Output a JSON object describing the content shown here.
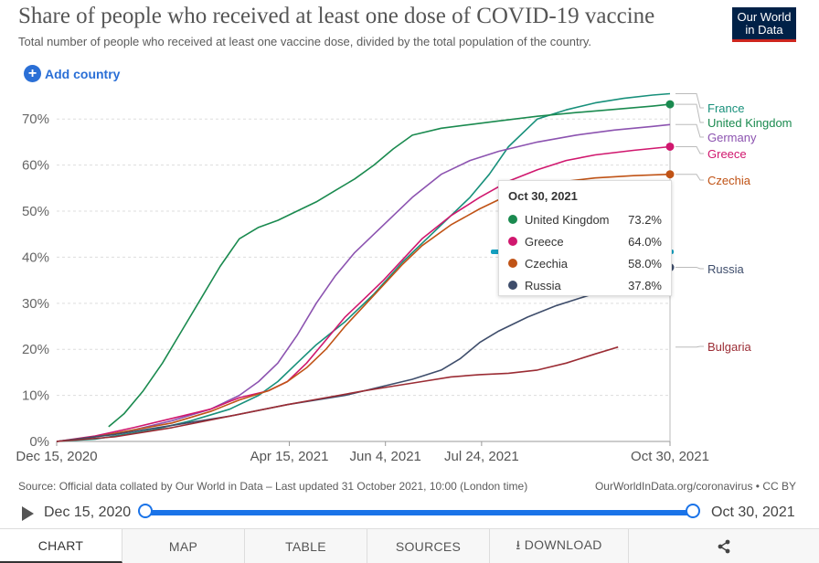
{
  "header": {
    "title": "Share of people who received at least one dose of COVID-19 vaccine",
    "subtitle": "Total number of people who received at least one vaccine dose, divided by the total population of the country.",
    "logo_line1": "Our World",
    "logo_line2": "in Data",
    "add_country_label": "Add country",
    "add_icon_glyph": "+"
  },
  "chart_data": {
    "type": "line",
    "title": "Share of people who received at least one dose of COVID-19 vaccine",
    "ylabel": "",
    "xlabel": "",
    "ylim": [
      0,
      76
    ],
    "y_ticks": [
      0,
      10,
      20,
      30,
      40,
      50,
      60,
      70
    ],
    "y_tick_labels": [
      "0%",
      "10%",
      "20%",
      "30%",
      "40%",
      "50%",
      "60%",
      "70%"
    ],
    "x_range_days": [
      0,
      319
    ],
    "x_ticks": [
      {
        "day": 0,
        "label": "Dec 15, 2020"
      },
      {
        "day": 121,
        "label": "Apr 15, 2021"
      },
      {
        "day": 171,
        "label": "Jun 4, 2021"
      },
      {
        "day": 221,
        "label": "Jul 24, 2021"
      },
      {
        "day": 319,
        "label": "Oct 30, 2021"
      }
    ],
    "series": [
      {
        "name": "France",
        "color": "#18907b",
        "end_value": 75.5,
        "x": [
          0,
          20,
          35,
          50,
          70,
          90,
          105,
          115,
          125,
          135,
          150,
          165,
          180,
          195,
          205,
          215,
          225,
          235,
          250,
          265,
          280,
          295,
          310,
          319
        ],
        "y": [
          0,
          0.5,
          1.5,
          2.5,
          4.5,
          7,
          10,
          13,
          17,
          21,
          26,
          32,
          39,
          45,
          49,
          53,
          58,
          64,
          70,
          72,
          73.5,
          74.5,
          75.2,
          75.5
        ]
      },
      {
        "name": "United Kingdom",
        "color": "#1a8a4f",
        "end_value": 73.2,
        "marker": true,
        "x": [
          27,
          35,
          45,
          55,
          65,
          75,
          85,
          95,
          105,
          115,
          125,
          135,
          145,
          155,
          165,
          175,
          185,
          200,
          215,
          230,
          250,
          270,
          290,
          310,
          319
        ],
        "y": [
          3.2,
          6,
          11,
          17,
          24,
          31,
          38,
          44,
          46.5,
          48,
          50,
          52,
          54.5,
          57,
          60,
          63.5,
          66.5,
          68,
          68.8,
          69.6,
          70.6,
          71.4,
          72.1,
          72.8,
          73.2
        ]
      },
      {
        "name": "Germany",
        "color": "#8c53b0",
        "end_value": 68.8,
        "x": [
          0,
          20,
          40,
          60,
          80,
          95,
          105,
          115,
          125,
          135,
          145,
          155,
          165,
          175,
          185,
          200,
          215,
          230,
          250,
          270,
          290,
          310,
          319
        ],
        "y": [
          0,
          1,
          2.5,
          4.5,
          7,
          10,
          13,
          17,
          23,
          30,
          36,
          41,
          45,
          49,
          53,
          58,
          61,
          63,
          65,
          66.5,
          67.6,
          68.4,
          68.8
        ]
      },
      {
        "name": "Greece",
        "color": "#d0176e",
        "end_value": 64.0,
        "marker": true,
        "x": [
          0,
          20,
          40,
          60,
          80,
          95,
          110,
          120,
          130,
          140,
          150,
          160,
          170,
          180,
          190,
          205,
          220,
          235,
          250,
          265,
          280,
          300,
          319
        ],
        "y": [
          0,
          1.2,
          3,
          5,
          7,
          9.5,
          11,
          13,
          17,
          22,
          27,
          31,
          35,
          39.5,
          44,
          49,
          53,
          56.5,
          59,
          61,
          62.2,
          63.2,
          64
        ]
      },
      {
        "name": "Czechia",
        "color": "#c05316",
        "end_value": 58.0,
        "marker": true,
        "x": [
          0,
          20,
          40,
          60,
          80,
          95,
          110,
          120,
          130,
          140,
          150,
          160,
          170,
          180,
          190,
          205,
          220,
          235,
          250,
          265,
          280,
          300,
          319
        ],
        "y": [
          0,
          1,
          2.5,
          4,
          6.5,
          9,
          11,
          13,
          16,
          20,
          25,
          29.5,
          34,
          38.5,
          42.5,
          47,
          50.5,
          53.5,
          55.5,
          56.5,
          57.2,
          57.7,
          58
        ]
      },
      {
        "name": "Russia",
        "color": "#3e4d6b",
        "end_value": 37.8,
        "marker": true,
        "x": [
          0,
          30,
          60,
          90,
          120,
          150,
          170,
          185,
          200,
          210,
          220,
          230,
          245,
          260,
          275,
          290,
          305,
          319
        ],
        "y": [
          0,
          1.5,
          3.5,
          5.5,
          8,
          10,
          12,
          13.5,
          15.5,
          18,
          21.5,
          24,
          27,
          29.5,
          31.5,
          33.5,
          36,
          37.8
        ]
      },
      {
        "name": "Bulgaria",
        "color": "#9b2c34",
        "end_value": 20.5,
        "x": [
          0,
          30,
          60,
          90,
          120,
          140,
          160,
          175,
          190,
          205,
          220,
          235,
          250,
          265,
          280,
          292
        ],
        "y": [
          0,
          1,
          3,
          5.5,
          8,
          9.5,
          11,
          12,
          13,
          14,
          14.5,
          14.8,
          15.5,
          17,
          19,
          20.5
        ]
      }
    ],
    "legend_order": [
      "France",
      "United Kingdom",
      "Germany",
      "Greece",
      "Czechia",
      "Russia",
      "Bulgaria"
    ],
    "tooltip": {
      "date": "Oct 30, 2021",
      "rows": [
        {
          "name": "United Kingdom",
          "value": "73.2%",
          "color": "#1a8a4f"
        },
        {
          "name": "Greece",
          "value": "64.0%",
          "color": "#d0176e"
        },
        {
          "name": "Czechia",
          "value": "58.0%",
          "color": "#c05316"
        },
        {
          "name": "Russia",
          "value": "37.8%",
          "color": "#3e4d6b"
        }
      ]
    }
  },
  "footer": {
    "source": "Source: Official data collated by Our World in Data – Last updated 31 October 2021, 10:00 (London time)",
    "site": "OurWorldInData.org/coronavirus • CC BY"
  },
  "timeline": {
    "start_label": "Dec 15, 2020",
    "end_label": "Oct 30, 2021",
    "start_fraction": 0,
    "end_fraction": 1
  },
  "tabs": [
    {
      "label": "CHART",
      "active": true
    },
    {
      "label": "MAP"
    },
    {
      "label": "TABLE"
    },
    {
      "label": "SOURCES"
    },
    {
      "label": "⭳ DOWNLOAD"
    },
    {
      "label": "share-icon"
    }
  ]
}
